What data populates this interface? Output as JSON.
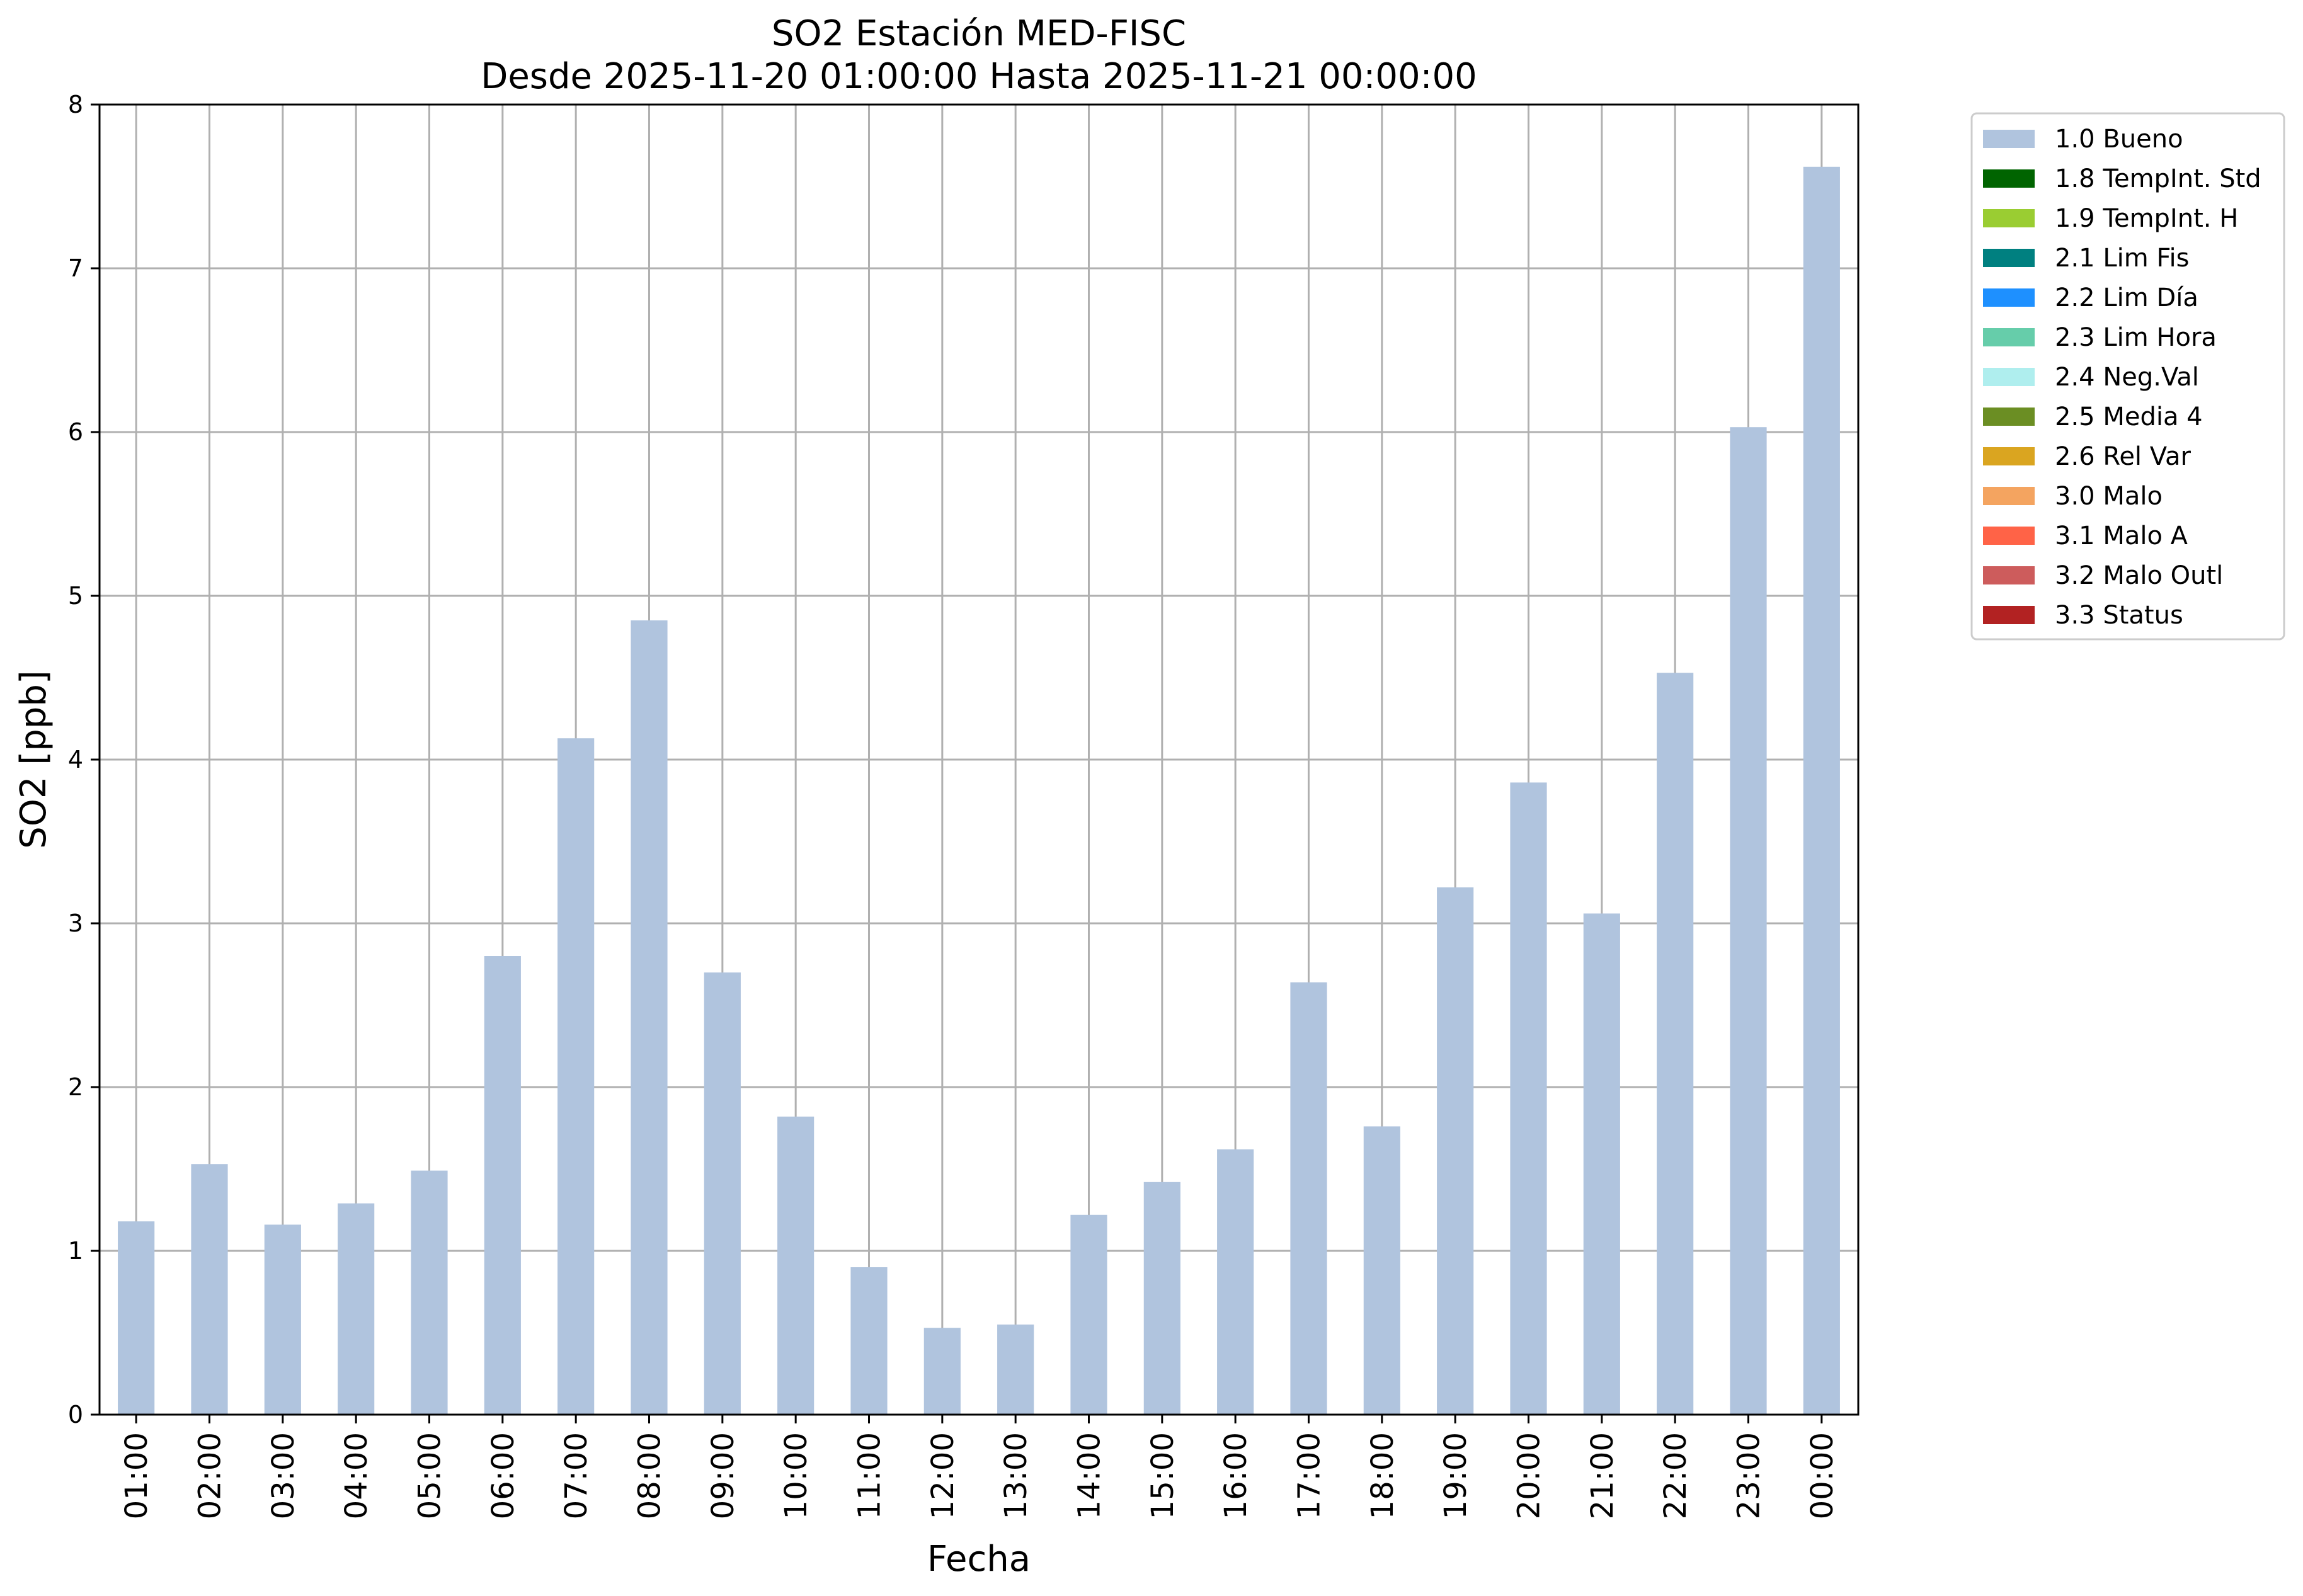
{
  "chart_data": {
    "type": "bar",
    "title": "SO2 Estación MED-FISC",
    "subtitle": "Desde 2025-11-20 01:00:00 Hasta 2025-11-21 00:00:00",
    "xlabel": "Fecha",
    "ylabel": "SO2 [ppb]",
    "ylim": [
      0,
      8
    ],
    "yticks": [
      "0",
      "1",
      "2",
      "3",
      "4",
      "5",
      "6",
      "7",
      "8"
    ],
    "grid": true,
    "legend_position": "outside-top-right",
    "categories": [
      "01:00",
      "02:00",
      "03:00",
      "04:00",
      "05:00",
      "06:00",
      "07:00",
      "08:00",
      "09:00",
      "10:00",
      "11:00",
      "12:00",
      "13:00",
      "14:00",
      "15:00",
      "16:00",
      "17:00",
      "18:00",
      "19:00",
      "20:00",
      "21:00",
      "22:00",
      "23:00",
      "00:00"
    ],
    "series": [
      {
        "name": "1.0 Bueno",
        "color": "#b0c4de",
        "values": [
          1.18,
          1.53,
          1.16,
          1.29,
          1.49,
          2.8,
          4.13,
          4.85,
          2.7,
          1.82,
          0.9,
          0.53,
          0.55,
          1.22,
          1.42,
          1.62,
          2.64,
          1.76,
          3.22,
          3.86,
          3.06,
          4.53,
          6.03,
          7.62
        ]
      }
    ],
    "legend": [
      {
        "label": "1.0 Bueno",
        "color": "#b0c4de"
      },
      {
        "label": "1.8 TempInt. Std",
        "color": "#006400"
      },
      {
        "label": "1.9 TempInt. H",
        "color": "#9acd32"
      },
      {
        "label": "2.1 Lim Fis",
        "color": "#008080"
      },
      {
        "label": "2.2 Lim Día",
        "color": "#1e90ff"
      },
      {
        "label": "2.3 Lim Hora",
        "color": "#66cdaa"
      },
      {
        "label": "2.4 Neg.Val",
        "color": "#afeeee"
      },
      {
        "label": "2.5 Media 4",
        "color": "#6b8e23"
      },
      {
        "label": "2.6 Rel Var",
        "color": "#daa520"
      },
      {
        "label": "3.0 Malo",
        "color": "#f4a460"
      },
      {
        "label": "3.1 Malo A",
        "color": "#ff6347"
      },
      {
        "label": "3.2 Malo Outl",
        "color": "#cd5c5c"
      },
      {
        "label": "3.3 Status",
        "color": "#b22222"
      }
    ]
  }
}
